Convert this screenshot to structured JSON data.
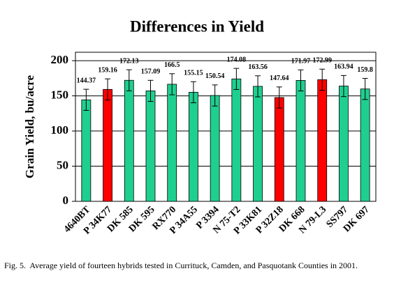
{
  "chart_data": {
    "type": "bar",
    "title": "Differences in Yield",
    "y_label": "Grain Yield, bu/acre",
    "categories": [
      "4640BT",
      "P 34K77",
      "DK 585",
      "DK 595",
      "RX770",
      "P 34A55",
      "P 3394",
      "N 75-T2",
      "P 33K81",
      "P 32Z18",
      "DK 668",
      "N 79-L3",
      "SS797",
      "DK 697"
    ],
    "values": [
      144.37,
      159.16,
      172.13,
      157.09,
      166.5,
      155.15,
      150.54,
      174.08,
      163.56,
      147.64,
      171.97,
      172.99,
      163.94,
      159.8
    ],
    "errors": [
      15,
      15,
      15,
      15,
      15,
      15,
      15,
      15,
      15,
      15,
      15,
      15,
      15,
      15
    ],
    "colors": [
      "#1fcf8f",
      "#ff0000",
      "#1fcf8f",
      "#1fcf8f",
      "#1fcf8f",
      "#1fcf8f",
      "#1fcf8f",
      "#1fcf8f",
      "#1fcf8f",
      "#ff0000",
      "#1fcf8f",
      "#ff0000",
      "#1fcf8f",
      "#1fcf8f"
    ],
    "ylim": [
      0,
      212
    ],
    "yticks": [
      0,
      50,
      100,
      150,
      200
    ],
    "grid": true,
    "caption": "Fig. 5.  Average yield of fourteen hybrids tested in Currituck, Camden, and Pasquotank Counties in 2001."
  }
}
